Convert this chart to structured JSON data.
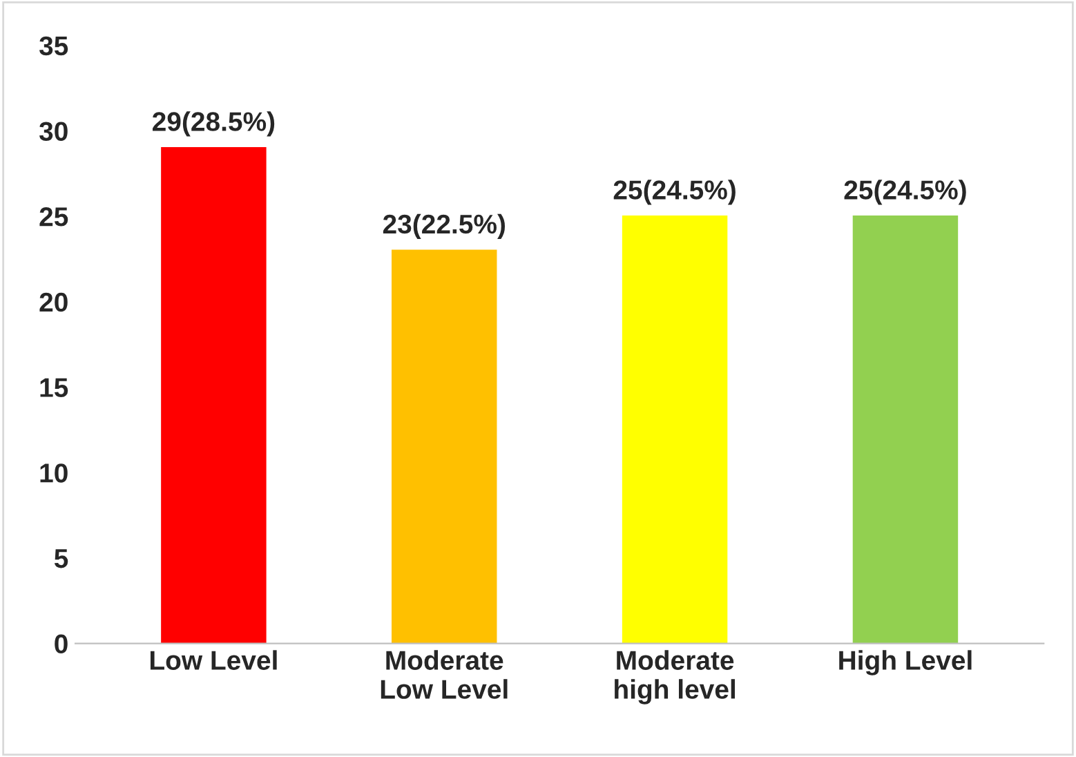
{
  "chart_data": {
    "type": "bar",
    "categories": [
      "Low Level",
      "Moderate\nLow Level",
      "Moderate\nhigh level",
      "High Level"
    ],
    "values": [
      29,
      23,
      25,
      25
    ],
    "colors": [
      "#ff0000",
      "#ffc000",
      "#ffff00",
      "#92d050"
    ],
    "value_labels": [
      "29(28.5%)",
      "23(22.5%)",
      "25(24.5%)",
      "25(24.5%)"
    ],
    "ylim": [
      0,
      35
    ],
    "yticks": [
      0,
      5,
      10,
      15,
      20,
      25,
      30,
      35
    ],
    "grid": false,
    "legend": false
  }
}
